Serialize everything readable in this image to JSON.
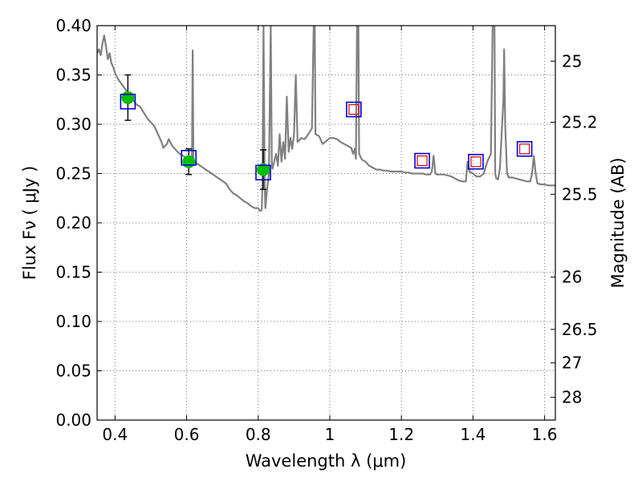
{
  "chart_data": {
    "type": "scatter",
    "xlabel": "Wavelength  λ (μm)",
    "ylabel": "Flux  Fν  ( μJy )",
    "ylabel_right": "Magnitude (AB)",
    "xlim": [
      0.35,
      1.63
    ],
    "ylim": [
      0.0,
      0.4
    ],
    "grid": true,
    "x_ticks": [
      {
        "value": 0.4,
        "label": "0.4"
      },
      {
        "value": 0.6,
        "label": "0.6"
      },
      {
        "value": 0.8,
        "label": "0.8"
      },
      {
        "value": 1.0,
        "label": "1"
      },
      {
        "value": 1.2,
        "label": "1.2"
      },
      {
        "value": 1.4,
        "label": "1.4"
      },
      {
        "value": 1.6,
        "label": "1.6"
      }
    ],
    "y_ticks": [
      {
        "value": 0.0,
        "label": "0.00"
      },
      {
        "value": 0.05,
        "label": "0.05"
      },
      {
        "value": 0.1,
        "label": "0.10"
      },
      {
        "value": 0.15,
        "label": "0.15"
      },
      {
        "value": 0.2,
        "label": "0.20"
      },
      {
        "value": 0.25,
        "label": "0.25"
      },
      {
        "value": 0.3,
        "label": "0.30"
      },
      {
        "value": 0.35,
        "label": "0.35"
      },
      {
        "value": 0.4,
        "label": "0.40"
      }
    ],
    "right_ticks": [
      {
        "flux": 0.364,
        "label": "25"
      },
      {
        "flux": 0.302,
        "label": "25.2"
      },
      {
        "flux": 0.229,
        "label": "25.5"
      },
      {
        "flux": 0.145,
        "label": "26"
      },
      {
        "flux": 0.092,
        "label": "26.5"
      },
      {
        "flux": 0.058,
        "label": "27"
      },
      {
        "flux": 0.023,
        "label": "28"
      }
    ],
    "colors": {
      "spectrum": "#808080",
      "observed": "#00c000",
      "model_outer": "#0000dd",
      "model_inner": "#dd0000",
      "errorbar": "#000000"
    },
    "spectrum": [
      [
        0.35,
        0.372
      ],
      [
        0.355,
        0.376
      ],
      [
        0.36,
        0.37
      ],
      [
        0.365,
        0.382
      ],
      [
        0.37,
        0.39
      ],
      [
        0.375,
        0.378
      ],
      [
        0.38,
        0.366
      ],
      [
        0.385,
        0.372
      ],
      [
        0.39,
        0.362
      ],
      [
        0.395,
        0.358
      ],
      [
        0.4,
        0.352
      ],
      [
        0.41,
        0.345
      ],
      [
        0.42,
        0.34
      ],
      [
        0.43,
        0.335
      ],
      [
        0.44,
        0.33
      ],
      [
        0.45,
        0.325
      ],
      [
        0.46,
        0.32
      ],
      [
        0.47,
        0.318
      ],
      [
        0.48,
        0.312
      ],
      [
        0.49,
        0.306
      ],
      [
        0.5,
        0.302
      ],
      [
        0.51,
        0.298
      ],
      [
        0.52,
        0.29
      ],
      [
        0.53,
        0.282
      ],
      [
        0.535,
        0.276
      ],
      [
        0.545,
        0.28
      ],
      [
        0.55,
        0.285
      ],
      [
        0.56,
        0.278
      ],
      [
        0.57,
        0.274
      ],
      [
        0.58,
        0.27
      ],
      [
        0.59,
        0.268
      ],
      [
        0.6,
        0.266
      ],
      [
        0.61,
        0.264
      ],
      [
        0.615,
        0.262
      ],
      [
        0.617,
        0.375
      ],
      [
        0.619,
        0.262
      ],
      [
        0.63,
        0.26
      ],
      [
        0.65,
        0.255
      ],
      [
        0.67,
        0.25
      ],
      [
        0.69,
        0.245
      ],
      [
        0.71,
        0.24
      ],
      [
        0.72,
        0.234
      ],
      [
        0.73,
        0.23
      ],
      [
        0.74,
        0.228
      ],
      [
        0.75,
        0.225
      ],
      [
        0.76,
        0.222
      ],
      [
        0.77,
        0.22
      ],
      [
        0.78,
        0.217
      ],
      [
        0.79,
        0.215
      ],
      [
        0.8,
        0.215
      ],
      [
        0.805,
        0.212
      ],
      [
        0.81,
        0.213
      ],
      [
        0.812,
        0.24
      ],
      [
        0.815,
        0.4
      ],
      [
        0.818,
        0.24
      ],
      [
        0.82,
        0.215
      ],
      [
        0.825,
        0.235
      ],
      [
        0.83,
        0.25
      ],
      [
        0.835,
        0.4
      ],
      [
        0.838,
        0.26
      ],
      [
        0.84,
        0.255
      ],
      [
        0.85,
        0.27
      ],
      [
        0.855,
        0.258
      ],
      [
        0.86,
        0.29
      ],
      [
        0.865,
        0.262
      ],
      [
        0.87,
        0.282
      ],
      [
        0.875,
        0.265
      ],
      [
        0.88,
        0.328
      ],
      [
        0.885,
        0.272
      ],
      [
        0.89,
        0.286
      ],
      [
        0.895,
        0.275
      ],
      [
        0.9,
        0.29
      ],
      [
        0.905,
        0.35
      ],
      [
        0.91,
        0.282
      ],
      [
        0.92,
        0.286
      ],
      [
        0.93,
        0.285
      ],
      [
        0.94,
        0.29
      ],
      [
        0.95,
        0.296
      ],
      [
        0.955,
        0.4
      ],
      [
        0.958,
        0.4
      ],
      [
        0.96,
        0.29
      ],
      [
        0.97,
        0.288
      ],
      [
        0.98,
        0.28
      ],
      [
        0.99,
        0.283
      ],
      [
        1.0,
        0.286
      ],
      [
        1.01,
        0.286
      ],
      [
        1.02,
        0.285
      ],
      [
        1.03,
        0.282
      ],
      [
        1.04,
        0.28
      ],
      [
        1.05,
        0.278
      ],
      [
        1.06,
        0.276
      ],
      [
        1.065,
        0.27
      ],
      [
        1.07,
        0.275
      ],
      [
        1.073,
        0.265
      ],
      [
        1.076,
        0.4
      ],
      [
        1.08,
        0.4
      ],
      [
        1.082,
        0.27
      ],
      [
        1.09,
        0.264
      ],
      [
        1.1,
        0.262
      ],
      [
        1.11,
        0.258
      ],
      [
        1.12,
        0.256
      ],
      [
        1.13,
        0.254
      ],
      [
        1.14,
        0.254
      ],
      [
        1.15,
        0.253
      ],
      [
        1.16,
        0.253
      ],
      [
        1.17,
        0.252
      ],
      [
        1.18,
        0.252
      ],
      [
        1.19,
        0.252
      ],
      [
        1.2,
        0.252
      ],
      [
        1.21,
        0.251
      ],
      [
        1.22,
        0.251
      ],
      [
        1.23,
        0.25
      ],
      [
        1.24,
        0.25
      ],
      [
        1.25,
        0.25
      ],
      [
        1.26,
        0.25
      ],
      [
        1.27,
        0.249
      ],
      [
        1.28,
        0.249
      ],
      [
        1.285,
        0.252
      ],
      [
        1.29,
        0.268
      ],
      [
        1.295,
        0.25
      ],
      [
        1.3,
        0.249
      ],
      [
        1.31,
        0.249
      ],
      [
        1.32,
        0.249
      ],
      [
        1.33,
        0.248
      ],
      [
        1.34,
        0.247
      ],
      [
        1.35,
        0.245
      ],
      [
        1.36,
        0.243
      ],
      [
        1.37,
        0.242
      ],
      [
        1.38,
        0.242
      ],
      [
        1.385,
        0.262
      ],
      [
        1.39,
        0.252
      ],
      [
        1.4,
        0.25
      ],
      [
        1.41,
        0.247
      ],
      [
        1.42,
        0.247
      ],
      [
        1.43,
        0.25
      ],
      [
        1.44,
        0.262
      ],
      [
        1.45,
        0.27
      ],
      [
        1.455,
        0.4
      ],
      [
        1.46,
        0.4
      ],
      [
        1.462,
        0.25
      ],
      [
        1.465,
        0.245
      ],
      [
        1.47,
        0.244
      ],
      [
        1.475,
        0.255
      ],
      [
        1.48,
        0.29
      ],
      [
        1.485,
        0.325
      ],
      [
        1.487,
        0.376
      ],
      [
        1.49,
        0.3
      ],
      [
        1.495,
        0.25
      ],
      [
        1.5,
        0.246
      ],
      [
        1.51,
        0.246
      ],
      [
        1.52,
        0.245
      ],
      [
        1.53,
        0.244
      ],
      [
        1.54,
        0.243
      ],
      [
        1.55,
        0.242
      ],
      [
        1.56,
        0.242
      ],
      [
        1.565,
        0.25
      ],
      [
        1.57,
        0.268
      ],
      [
        1.575,
        0.25
      ],
      [
        1.58,
        0.24
      ],
      [
        1.59,
        0.239
      ],
      [
        1.6,
        0.239
      ],
      [
        1.61,
        0.238
      ],
      [
        1.62,
        0.238
      ],
      [
        1.63,
        0.238
      ]
    ],
    "observed_points": [
      {
        "x": 0.436,
        "y": 0.327,
        "err": 0.023
      },
      {
        "x": 0.606,
        "y": 0.262,
        "err": 0.013
      },
      {
        "x": 0.814,
        "y": 0.254,
        "err": 0.02
      }
    ],
    "model_points": [
      {
        "x": 0.436,
        "y": 0.323,
        "inner": false
      },
      {
        "x": 0.606,
        "y": 0.266,
        "inner": false
      },
      {
        "x": 0.814,
        "y": 0.251,
        "inner": false
      },
      {
        "x": 1.067,
        "y": 0.315,
        "inner": true
      },
      {
        "x": 1.258,
        "y": 0.263,
        "inner": true
      },
      {
        "x": 1.408,
        "y": 0.262,
        "inner": true
      },
      {
        "x": 1.544,
        "y": 0.275,
        "inner": true
      }
    ]
  }
}
